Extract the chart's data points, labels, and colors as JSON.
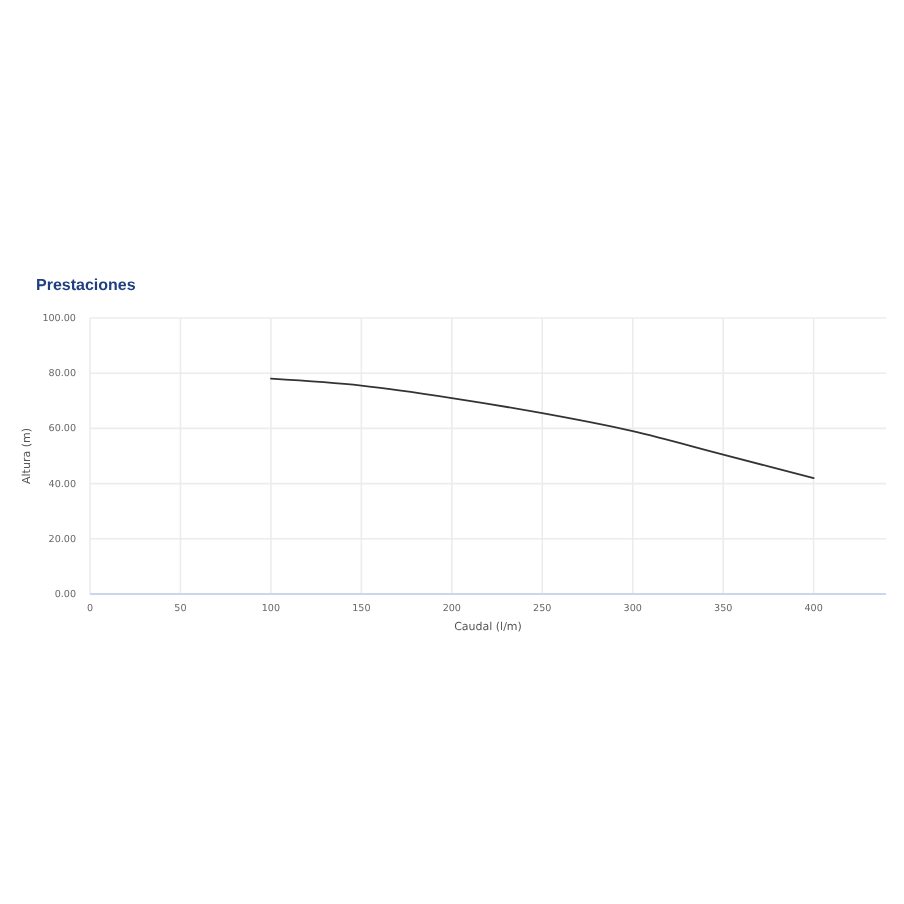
{
  "chart_data": {
    "type": "line",
    "title": "Prestaciones",
    "xlabel": "Caudal (l/m)",
    "ylabel": "Altura (m)",
    "x": [
      100,
      150,
      200,
      250,
      300,
      350,
      400
    ],
    "series": [
      {
        "color": "#333333",
        "values": [
          78,
          75.5,
          71,
          65.5,
          59,
          50.5,
          42
        ]
      }
    ],
    "xlim": [
      0,
      440
    ],
    "xticks": [
      0,
      50,
      100,
      150,
      200,
      250,
      300,
      350,
      400
    ],
    "ylim": [
      0,
      100
    ],
    "yticks": [
      {
        "value": 0,
        "label": "0.00"
      },
      {
        "value": 20,
        "label": "20.00"
      },
      {
        "value": 40,
        "label": "40.00"
      },
      {
        "value": 60,
        "label": "60.00"
      },
      {
        "value": 80,
        "label": "80.00"
      },
      {
        "value": 100,
        "label": "100.00"
      }
    ],
    "grid": true,
    "marker": "none",
    "line_style": "solid"
  }
}
